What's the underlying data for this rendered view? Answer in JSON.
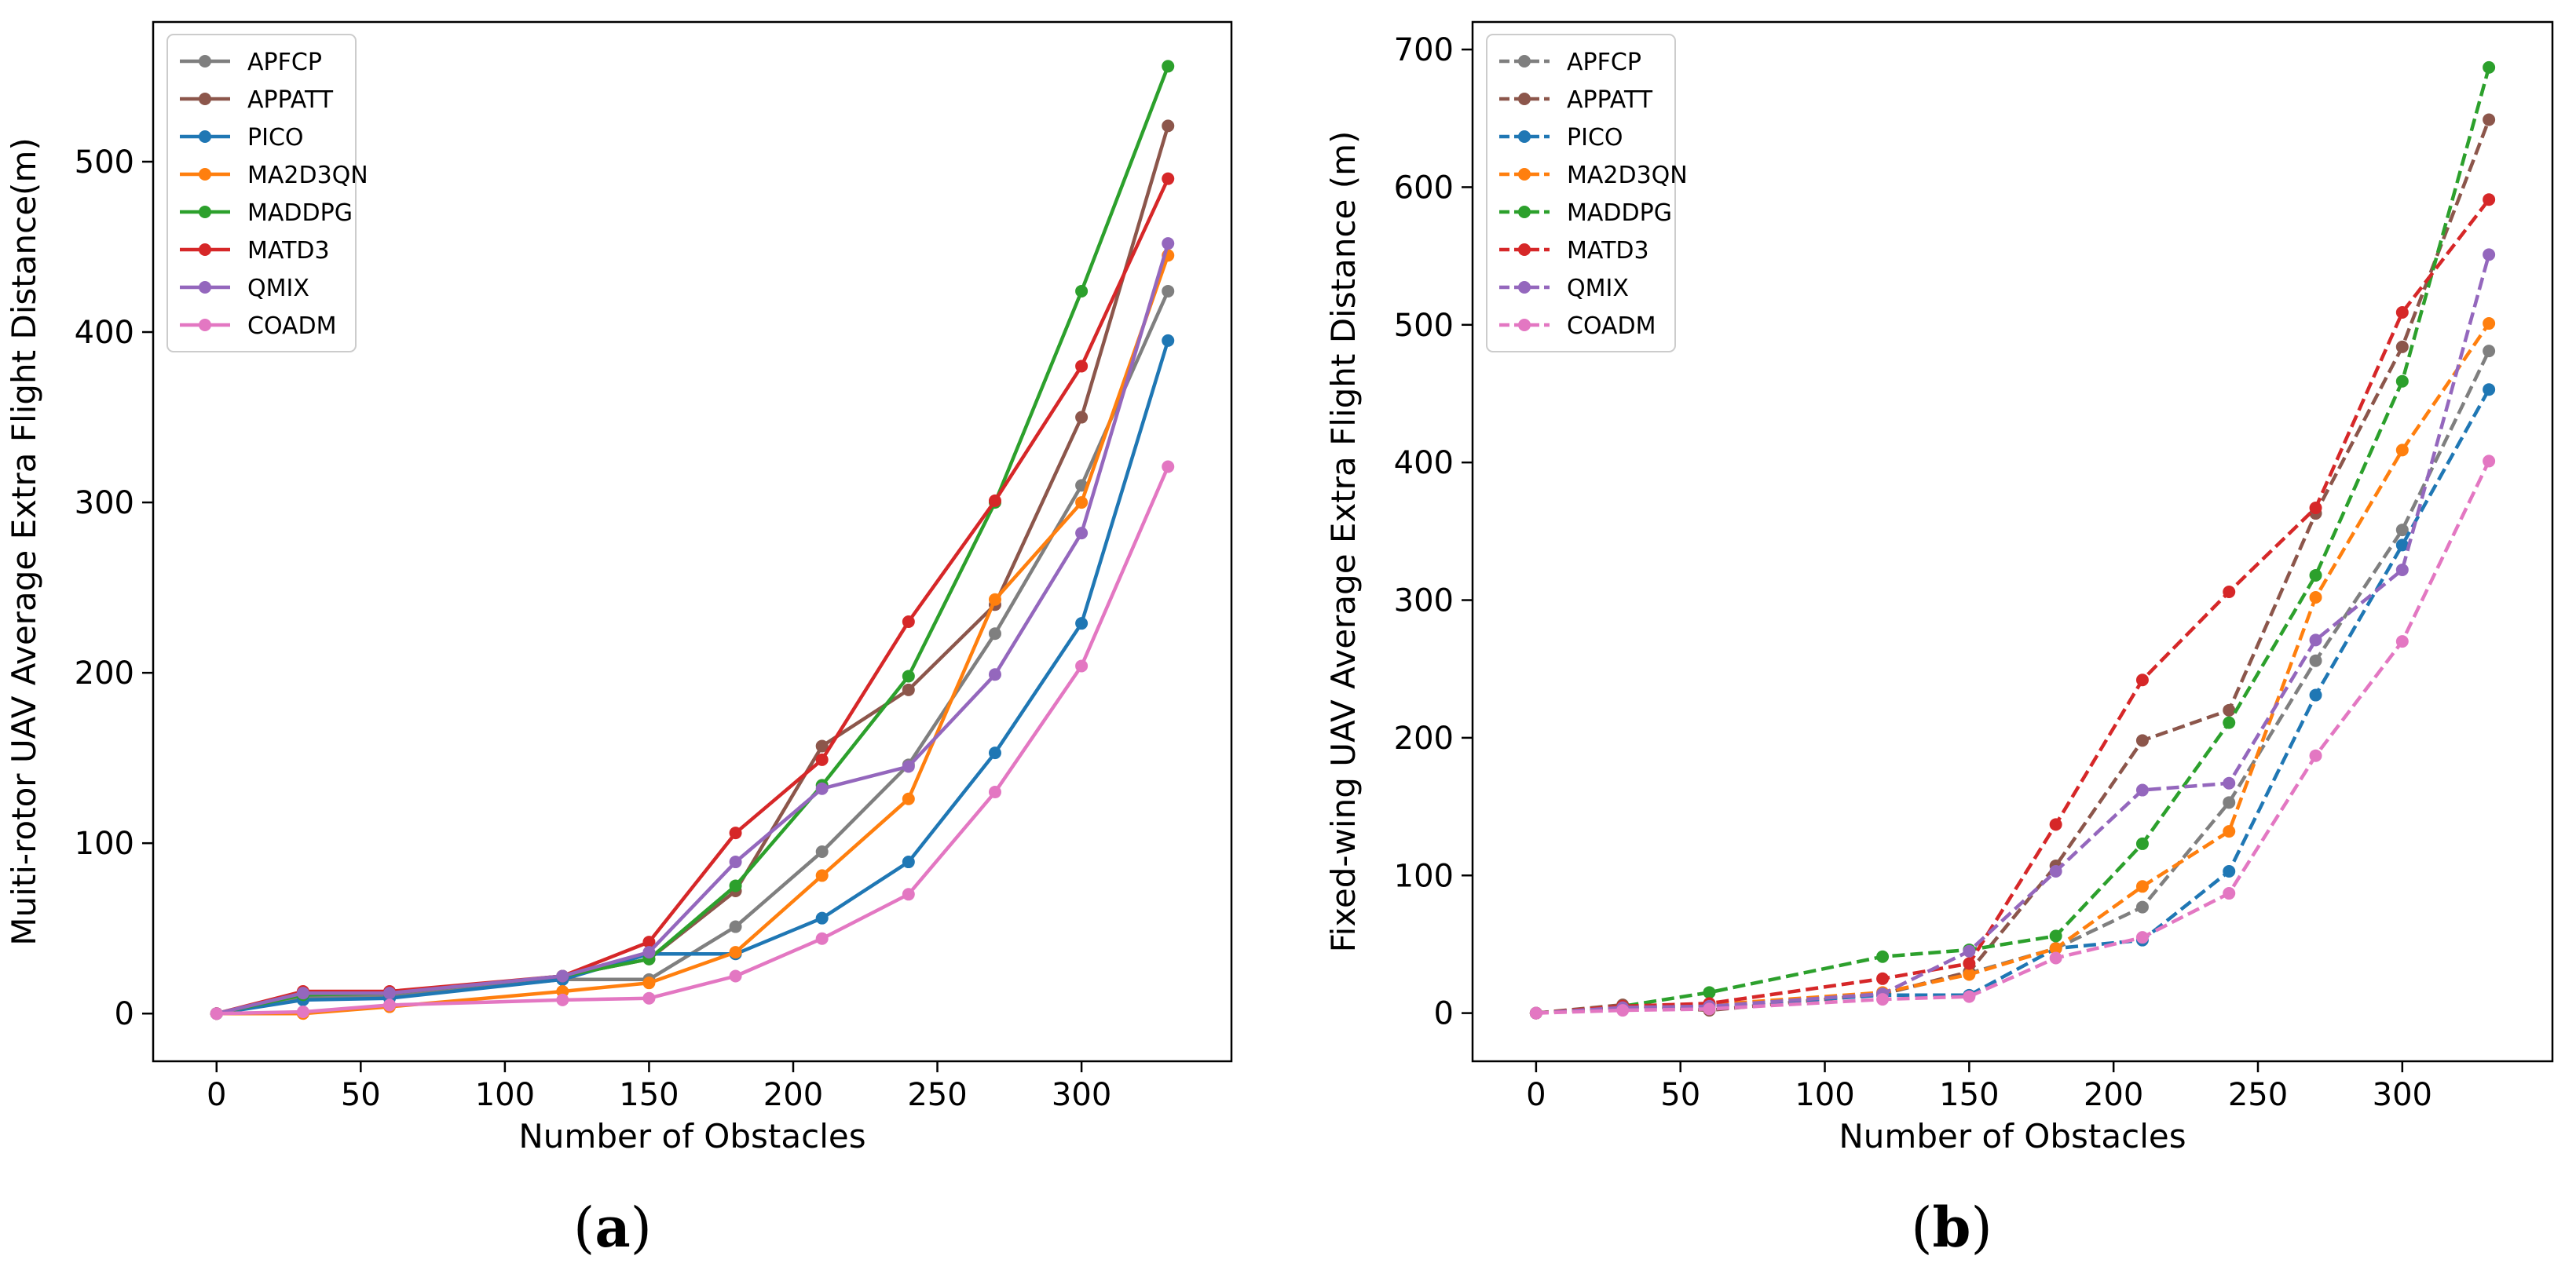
{
  "chart_data": [
    {
      "type": "line",
      "panel": "a",
      "panel_label": "(a)",
      "panel_letter": "a",
      "xlabel": "Number of Obstacles",
      "ylabel": "Muiti-rotor UAV Average Extra Flight Distance(m)",
      "xlim": [
        -22,
        352
      ],
      "ylim": [
        -28,
        582
      ],
      "xticks": [
        0,
        50,
        100,
        150,
        200,
        250,
        300
      ],
      "yticks": [
        0,
        100,
        200,
        300,
        400,
        500
      ],
      "line_style": "solid",
      "legend_position": "top-left",
      "x": [
        0,
        30,
        60,
        120,
        150,
        180,
        210,
        240,
        270,
        300,
        330
      ],
      "series": [
        {
          "name": "APFCP",
          "color": "#7f7f7f",
          "values": [
            0,
            10,
            10,
            20,
            20,
            51,
            95,
            146,
            223,
            310,
            424
          ]
        },
        {
          "name": "APPATT",
          "color": "#8c564b",
          "values": [
            0,
            12,
            12,
            22,
            32,
            72,
            157,
            190,
            240,
            350,
            521
          ]
        },
        {
          "name": "PICO",
          "color": "#1f77b4",
          "values": [
            0,
            8,
            9,
            20,
            35,
            35,
            56,
            89,
            153,
            229,
            395
          ]
        },
        {
          "name": "MA2D3QN",
          "color": "#ff7f0e",
          "values": [
            0,
            0,
            4,
            13,
            18,
            36,
            81,
            126,
            243,
            300,
            445
          ]
        },
        {
          "name": "MADDPG",
          "color": "#2ca02c",
          "values": [
            0,
            11,
            12,
            22,
            32,
            75,
            134,
            198,
            300,
            424,
            556
          ]
        },
        {
          "name": "MATD3",
          "color": "#d62728",
          "values": [
            0,
            13,
            13,
            22,
            42,
            106,
            149,
            230,
            301,
            380,
            490
          ]
        },
        {
          "name": "QMIX",
          "color": "#9467bd",
          "values": [
            0,
            12,
            12,
            22,
            36,
            89,
            132,
            145,
            199,
            282,
            452
          ]
        },
        {
          "name": "COADM",
          "color": "#e377c2",
          "values": [
            0,
            1,
            5,
            8,
            9,
            22,
            44,
            70,
            130,
            204,
            321
          ]
        }
      ]
    },
    {
      "type": "line",
      "panel": "b",
      "panel_label": "(b)",
      "panel_letter": "b",
      "xlabel": "Number of Obstacles",
      "ylabel": "Fixed-wing UAV Average Extra Flight Distance (m)",
      "xlim": [
        -22,
        352
      ],
      "ylim": [
        -35,
        720
      ],
      "xticks": [
        0,
        50,
        100,
        150,
        200,
        250,
        300
      ],
      "yticks": [
        0,
        100,
        200,
        300,
        400,
        500,
        600,
        700
      ],
      "line_style": "dashed",
      "legend_position": "top-left",
      "x": [
        0,
        30,
        60,
        120,
        150,
        180,
        210,
        240,
        270,
        300,
        330
      ],
      "series": [
        {
          "name": "APFCP",
          "color": "#7f7f7f",
          "values": [
            0,
            4,
            5,
            14,
            29,
            47,
            77,
            153,
            256,
            351,
            481
          ]
        },
        {
          "name": "APPATT",
          "color": "#8c564b",
          "values": [
            0,
            6,
            2,
            14,
            30,
            107,
            198,
            220,
            363,
            484,
            649
          ]
        },
        {
          "name": "PICO",
          "color": "#1f77b4",
          "values": [
            0,
            4,
            5,
            13,
            13,
            47,
            53,
            103,
            231,
            340,
            453
          ]
        },
        {
          "name": "MA2D3QN",
          "color": "#ff7f0e",
          "values": [
            0,
            5,
            6,
            15,
            28,
            47,
            92,
            132,
            302,
            409,
            501
          ]
        },
        {
          "name": "MADDPG",
          "color": "#2ca02c",
          "values": [
            0,
            5,
            15,
            41,
            46,
            56,
            123,
            211,
            318,
            459,
            687
          ]
        },
        {
          "name": "MATD3",
          "color": "#d62728",
          "values": [
            0,
            5,
            7,
            25,
            36,
            137,
            242,
            306,
            367,
            509,
            591
          ]
        },
        {
          "name": "QMIX",
          "color": "#9467bd",
          "values": [
            0,
            4,
            5,
            14,
            45,
            103,
            162,
            167,
            271,
            322,
            551
          ]
        },
        {
          "name": "COADM",
          "color": "#e377c2",
          "values": [
            0,
            2,
            3,
            10,
            12,
            40,
            55,
            87,
            187,
            270,
            401
          ]
        }
      ]
    }
  ]
}
